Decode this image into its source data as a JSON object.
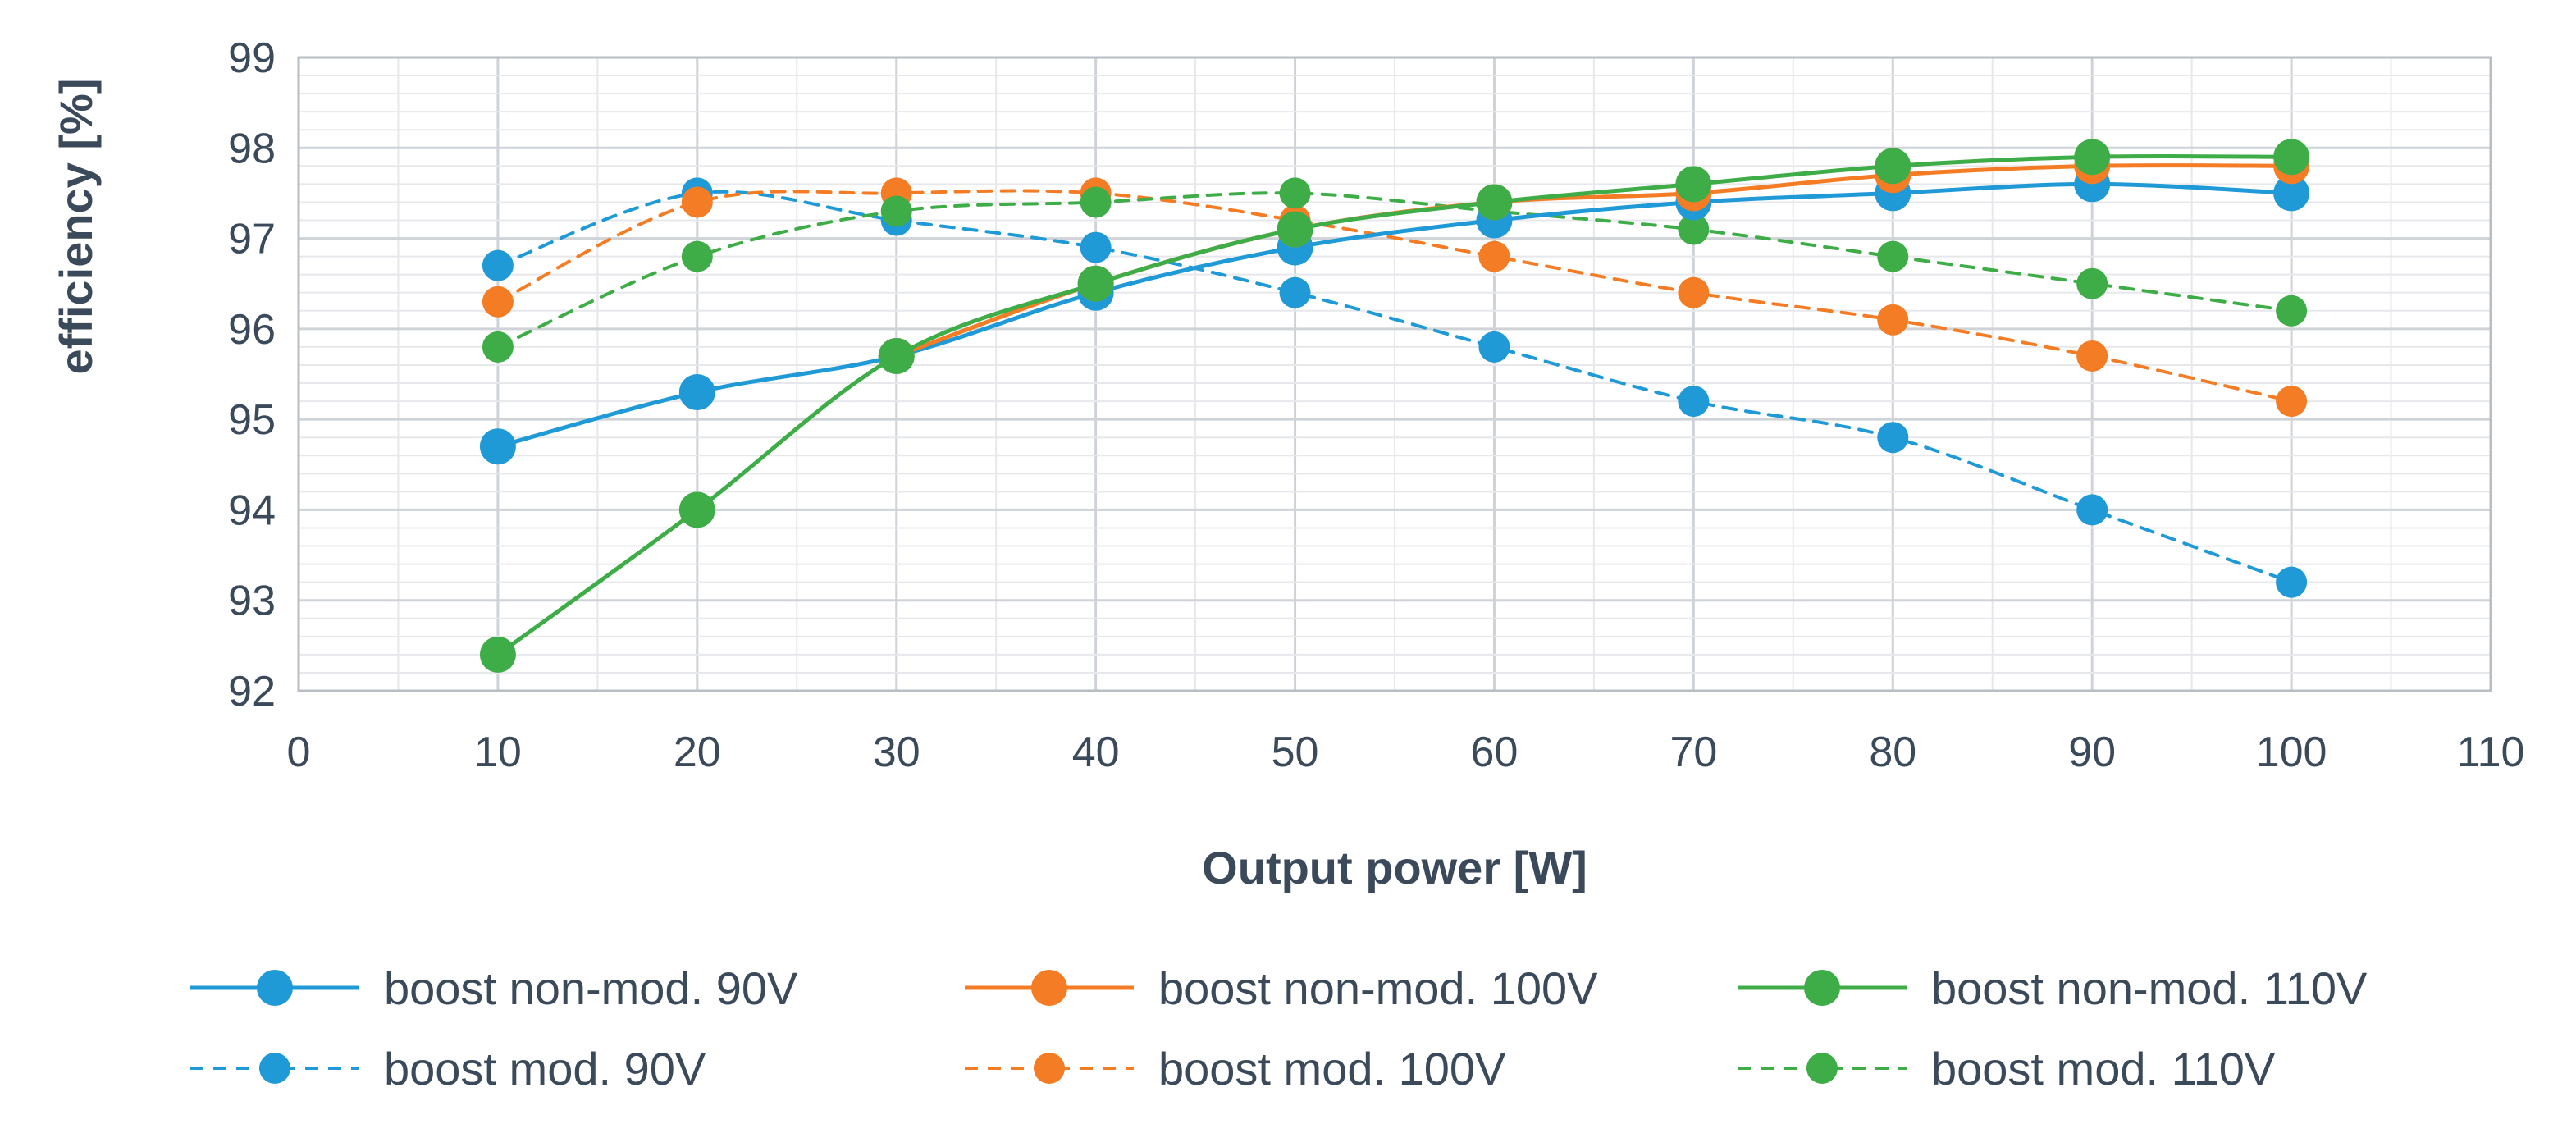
{
  "chart_data": {
    "type": "line",
    "title": "",
    "xlabel": "Output power [W]",
    "ylabel": "efficiency [%]",
    "xlim": [
      0,
      110
    ],
    "ylim": [
      92,
      99
    ],
    "xticks": [
      0,
      10,
      20,
      30,
      40,
      50,
      60,
      70,
      80,
      90,
      100,
      110
    ],
    "yticks": [
      92,
      93,
      94,
      95,
      96,
      97,
      98,
      99
    ],
    "grid": true,
    "legend_position": "bottom",
    "x": [
      10,
      20,
      30,
      40,
      50,
      60,
      70,
      80,
      90,
      100
    ],
    "series": [
      {
        "name": "boost non-mod. 90V",
        "color": "#1f9ad6",
        "dashed": false,
        "values": [
          94.7,
          95.3,
          95.7,
          96.4,
          96.9,
          97.2,
          97.4,
          97.5,
          97.6,
          97.5
        ]
      },
      {
        "name": "boost non-mod. 100V",
        "color": "#f47c25",
        "dashed": false,
        "values": [
          null,
          null,
          95.7,
          96.5,
          97.1,
          97.4,
          97.5,
          97.7,
          97.8,
          97.8
        ]
      },
      {
        "name": "boost non-mod. 110V",
        "color": "#3fad47",
        "dashed": false,
        "values": [
          92.4,
          94.0,
          95.7,
          96.5,
          97.1,
          97.4,
          97.6,
          97.8,
          97.9,
          97.9
        ]
      },
      {
        "name": "boost mod. 90V",
        "color": "#1f9ad6",
        "dashed": true,
        "values": [
          96.7,
          97.5,
          97.2,
          96.9,
          96.4,
          95.8,
          95.2,
          94.8,
          94.0,
          93.2
        ]
      },
      {
        "name": "boost mod. 100V",
        "color": "#f47c25",
        "dashed": true,
        "values": [
          96.3,
          97.4,
          97.5,
          97.5,
          97.2,
          96.8,
          96.4,
          96.1,
          95.7,
          95.2
        ]
      },
      {
        "name": "boost mod. 110V",
        "color": "#3fad47",
        "dashed": true,
        "values": [
          95.8,
          96.8,
          97.3,
          97.4,
          97.5,
          97.3,
          97.1,
          96.8,
          96.5,
          96.2
        ]
      }
    ]
  }
}
